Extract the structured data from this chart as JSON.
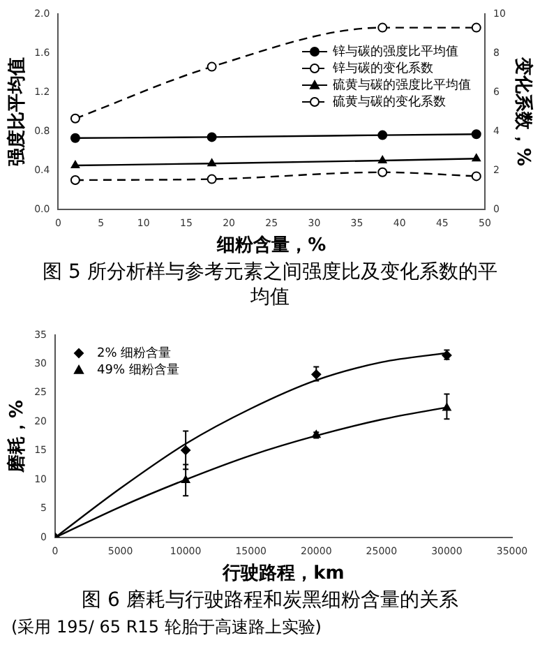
{
  "chart_data": [
    {
      "type": "line",
      "title": "图 5 所分析样与参考元素之间强度比及变化系数的平均值",
      "xlabel": "细粉含量，%",
      "ylabel": "强度比平均值",
      "y2label": "变化系数，%",
      "x": [
        2,
        18,
        38,
        49
      ],
      "series": [
        {
          "name": "锌与碳的强度比平均值",
          "color": "#000000",
          "values": [
            0.73,
            0.74,
            0.76,
            0.77
          ],
          "marker": "circle",
          "line_style": "solid"
        },
        {
          "name": "锌与碳的变化系数",
          "color": "#000000",
          "values": [
            4.65,
            7.3,
            9.3,
            9.3
          ],
          "axis": "y2",
          "marker": "circle",
          "line_style": "dashed"
        },
        {
          "name": "硫黄与碳的强度比平均值",
          "color": "#000000",
          "values": [
            0.45,
            0.47,
            0.5,
            0.52
          ],
          "marker": "triangle",
          "line_style": "solid"
        },
        {
          "name": "硫黄与碳的变化系数",
          "color": "#000000",
          "values": [
            1.5,
            1.55,
            1.9,
            1.7
          ],
          "axis": "y2",
          "marker": "circle",
          "line_style": "dashed"
        }
      ],
      "xlim": [
        0,
        50
      ],
      "xticks": [
        0,
        5,
        10,
        15,
        20,
        25,
        30,
        35,
        40,
        45,
        50
      ],
      "ylim": [
        0,
        2
      ],
      "yticks": [
        {
          "value": 0,
          "label": "0.0"
        },
        {
          "value": 0.4,
          "label": "0.4"
        },
        {
          "value": 0.8,
          "label": "0.8"
        },
        {
          "value": 1.2,
          "label": "1.2"
        },
        {
          "value": 1.6,
          "label": "1.6"
        },
        {
          "value": 2,
          "label": "2.0"
        }
      ],
      "y2lim": [
        0,
        10
      ],
      "y2ticks": [
        0,
        2,
        4,
        6,
        8,
        10
      ],
      "grid": false,
      "legend": "top right"
    },
    {
      "type": "scatter",
      "title": "图 6 磨耗与行驶路程和炭黑细粉含量的关系",
      "xlabel": "行驶路程，km",
      "ylabel": "磨耗，%",
      "annotations": [
        "(采用 195/ 65 R15 轮胎于高速路上实验)"
      ],
      "series": [
        {
          "name": "2% 细粉含量",
          "color": "#000000",
          "x": [
            0,
            10000,
            20000,
            30000
          ],
          "values": [
            0,
            15.1,
            28.2,
            31.5
          ],
          "errors": [
            null,
            [
              11.8,
              18.4
            ],
            [
              27.1,
              29.5
            ],
            [
              30.8,
              32.4
            ]
          ],
          "marker": "diamond"
        },
        {
          "name": "49% 细粉含量",
          "color": "#000000",
          "x": [
            10000,
            20000,
            30000
          ],
          "values": [
            9.9,
            17.7,
            22.4
          ],
          "errors": [
            [
              7.2,
              12.6
            ],
            [
              17.2,
              18.2
            ],
            [
              20.5,
              24.8
            ]
          ],
          "marker": "triangle"
        },
        {
          "type": "line",
          "color": "#000000",
          "x": [
            0,
            5000,
            10000,
            15000,
            20000,
            25000,
            30000
          ],
          "values": [
            0,
            8.5,
            16.2,
            22.3,
            27.2,
            30.3,
            31.9
          ],
          "marker": "none",
          "line_style": "solid"
        },
        {
          "type": "line",
          "color": "#000000",
          "x": [
            0,
            5000,
            10000,
            15000,
            20000,
            25000,
            30000
          ],
          "values": [
            0,
            5.3,
            10,
            14.2,
            17.6,
            20.4,
            22.5
          ],
          "marker": "none",
          "line_style": "solid"
        }
      ],
      "xlim": [
        0,
        35000
      ],
      "xticks": [
        0,
        5000,
        10000,
        15000,
        20000,
        25000,
        30000,
        35000
      ],
      "ylim": [
        0,
        35
      ],
      "yticks": [
        0,
        5,
        10,
        15,
        20,
        25,
        30,
        35
      ],
      "grid": false,
      "legend": "top left"
    }
  ]
}
